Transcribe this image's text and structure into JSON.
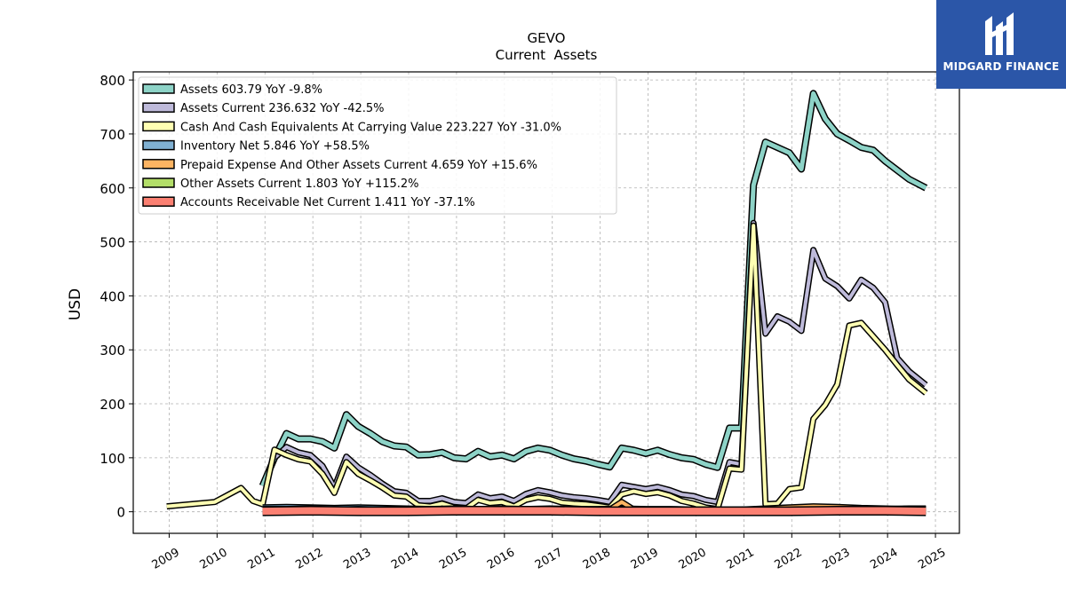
{
  "chart_data": {
    "type": "line",
    "title": "GEVO",
    "subtitle": "Current  Assets",
    "xlabel": "",
    "ylabel": "USD",
    "ylim": [
      -40,
      815
    ],
    "xlim": [
      2008.25,
      2025.5
    ],
    "yticks": [
      0,
      100,
      200,
      300,
      400,
      500,
      600,
      700,
      800
    ],
    "xticks": [
      2009,
      2010,
      2011,
      2012,
      2013,
      2014,
      2015,
      2016,
      2017,
      2018,
      2019,
      2020,
      2021,
      2022,
      2023,
      2024,
      2025
    ],
    "grid": true,
    "legend_position": "top-left",
    "series": [
      {
        "name": "Assets",
        "legend": "Assets  603.79 YoY -9.8%",
        "color": "#8dd3c7",
        "lw": 5,
        "points": [
          [
            2010.95,
            48
          ],
          [
            2011.2,
            100
          ],
          [
            2011.45,
            145
          ],
          [
            2011.7,
            135
          ],
          [
            2011.95,
            135
          ],
          [
            2012.2,
            130
          ],
          [
            2012.45,
            118
          ],
          [
            2012.7,
            180
          ],
          [
            2012.95,
            158
          ],
          [
            2013.2,
            145
          ],
          [
            2013.45,
            130
          ],
          [
            2013.7,
            122
          ],
          [
            2013.95,
            120
          ],
          [
            2014.2,
            105
          ],
          [
            2014.45,
            106
          ],
          [
            2014.7,
            110
          ],
          [
            2014.95,
            100
          ],
          [
            2015.2,
            98
          ],
          [
            2015.45,
            112
          ],
          [
            2015.7,
            102
          ],
          [
            2015.95,
            105
          ],
          [
            2016.2,
            98
          ],
          [
            2016.45,
            112
          ],
          [
            2016.7,
            118
          ],
          [
            2016.95,
            114
          ],
          [
            2017.2,
            105
          ],
          [
            2017.45,
            98
          ],
          [
            2017.7,
            94
          ],
          [
            2017.95,
            88
          ],
          [
            2018.2,
            83
          ],
          [
            2018.45,
            118
          ],
          [
            2018.7,
            114
          ],
          [
            2018.95,
            108
          ],
          [
            2019.2,
            114
          ],
          [
            2019.45,
            106
          ],
          [
            2019.7,
            100
          ],
          [
            2019.95,
            97
          ],
          [
            2020.2,
            88
          ],
          [
            2020.45,
            82
          ],
          [
            2020.7,
            155
          ],
          [
            2020.95,
            155
          ],
          [
            2021.2,
            605
          ],
          [
            2021.45,
            685
          ],
          [
            2021.7,
            675
          ],
          [
            2021.95,
            665
          ],
          [
            2022.2,
            635
          ],
          [
            2022.45,
            775
          ],
          [
            2022.7,
            728
          ],
          [
            2022.95,
            700
          ],
          [
            2023.2,
            688
          ],
          [
            2023.45,
            675
          ],
          [
            2023.7,
            670
          ],
          [
            2023.95,
            650
          ],
          [
            2024.2,
            633
          ],
          [
            2024.45,
            616
          ],
          [
            2024.8,
            600
          ]
        ]
      },
      {
        "name": "Assets Current",
        "legend": "Assets Current  236.632 YoY -42.5%",
        "color": "#bebada",
        "lw": 4,
        "points": [
          [
            2011.2,
            100
          ],
          [
            2011.45,
            120
          ],
          [
            2011.7,
            110
          ],
          [
            2011.95,
            105
          ],
          [
            2012.2,
            85
          ],
          [
            2012.45,
            45
          ],
          [
            2012.7,
            102
          ],
          [
            2012.95,
            82
          ],
          [
            2013.2,
            68
          ],
          [
            2013.45,
            52
          ],
          [
            2013.7,
            38
          ],
          [
            2013.95,
            35
          ],
          [
            2014.2,
            20
          ],
          [
            2014.45,
            20
          ],
          [
            2014.7,
            25
          ],
          [
            2014.95,
            18
          ],
          [
            2015.2,
            16
          ],
          [
            2015.45,
            32
          ],
          [
            2015.7,
            25
          ],
          [
            2015.95,
            28
          ],
          [
            2016.2,
            20
          ],
          [
            2016.45,
            33
          ],
          [
            2016.7,
            40
          ],
          [
            2016.95,
            36
          ],
          [
            2017.2,
            30
          ],
          [
            2017.45,
            27
          ],
          [
            2017.7,
            25
          ],
          [
            2017.95,
            22
          ],
          [
            2018.2,
            18
          ],
          [
            2018.45,
            50
          ],
          [
            2018.7,
            46
          ],
          [
            2018.95,
            42
          ],
          [
            2019.2,
            46
          ],
          [
            2019.45,
            40
          ],
          [
            2019.7,
            32
          ],
          [
            2019.95,
            29
          ],
          [
            2020.2,
            22
          ],
          [
            2020.45,
            18
          ],
          [
            2020.7,
            92
          ],
          [
            2020.95,
            88
          ],
          [
            2021.2,
            535
          ],
          [
            2021.45,
            330
          ],
          [
            2021.7,
            362
          ],
          [
            2021.95,
            352
          ],
          [
            2022.2,
            335
          ],
          [
            2022.45,
            485
          ],
          [
            2022.7,
            432
          ],
          [
            2022.95,
            418
          ],
          [
            2023.2,
            395
          ],
          [
            2023.45,
            430
          ],
          [
            2023.7,
            415
          ],
          [
            2023.95,
            388
          ],
          [
            2024.2,
            285
          ],
          [
            2024.45,
            260
          ],
          [
            2024.8,
            235
          ]
        ]
      },
      {
        "name": "Cash And Cash Equivalents At Carrying Value",
        "legend": "Cash And Cash Equivalents At Carrying Value  223.227 YoY -31.0%",
        "color": "#ffffb3",
        "lw": 4,
        "points": [
          [
            2008.95,
            10
          ],
          [
            2009.95,
            18
          ],
          [
            2010.5,
            44
          ],
          [
            2010.75,
            20
          ],
          [
            2010.95,
            14
          ],
          [
            2011.2,
            115
          ],
          [
            2011.45,
            105
          ],
          [
            2011.7,
            97
          ],
          [
            2011.95,
            93
          ],
          [
            2012.2,
            70
          ],
          [
            2012.45,
            35
          ],
          [
            2012.7,
            92
          ],
          [
            2012.95,
            70
          ],
          [
            2013.2,
            58
          ],
          [
            2013.45,
            45
          ],
          [
            2013.7,
            30
          ],
          [
            2013.95,
            28
          ],
          [
            2014.2,
            12
          ],
          [
            2014.45,
            10
          ],
          [
            2014.7,
            15
          ],
          [
            2014.95,
            8
          ],
          [
            2015.2,
            6
          ],
          [
            2015.45,
            22
          ],
          [
            2015.7,
            16
          ],
          [
            2015.95,
            18
          ],
          [
            2016.2,
            10
          ],
          [
            2016.45,
            22
          ],
          [
            2016.7,
            27
          ],
          [
            2016.95,
            24
          ],
          [
            2017.2,
            17
          ],
          [
            2017.45,
            15
          ],
          [
            2017.7,
            14
          ],
          [
            2017.95,
            11
          ],
          [
            2018.2,
            8
          ],
          [
            2018.45,
            32
          ],
          [
            2018.7,
            38
          ],
          [
            2018.95,
            33
          ],
          [
            2019.2,
            36
          ],
          [
            2019.45,
            30
          ],
          [
            2019.7,
            20
          ],
          [
            2019.95,
            15
          ],
          [
            2020.2,
            8
          ],
          [
            2020.45,
            5
          ],
          [
            2020.7,
            80
          ],
          [
            2020.95,
            78
          ],
          [
            2021.2,
            530
          ],
          [
            2021.45,
            14
          ],
          [
            2021.7,
            15
          ],
          [
            2021.95,
            42
          ],
          [
            2022.2,
            45
          ],
          [
            2022.45,
            172
          ],
          [
            2022.7,
            198
          ],
          [
            2022.95,
            236
          ],
          [
            2023.2,
            345
          ],
          [
            2023.45,
            350
          ],
          [
            2023.7,
            325
          ],
          [
            2023.95,
            300
          ],
          [
            2024.2,
            272
          ],
          [
            2024.45,
            245
          ],
          [
            2024.8,
            220
          ]
        ]
      },
      {
        "name": "Inventory Net",
        "legend": "Inventory Net  5.846 YoY +58.5%",
        "color": "#80b1d3",
        "lw": 4,
        "points": [
          [
            2010.95,
            8
          ],
          [
            2011.45,
            9
          ],
          [
            2011.95,
            8
          ],
          [
            2012.45,
            7
          ],
          [
            2012.95,
            8
          ],
          [
            2013.45,
            7
          ],
          [
            2013.95,
            6
          ],
          [
            2014.45,
            5
          ],
          [
            2014.95,
            6
          ],
          [
            2015.45,
            5
          ],
          [
            2015.95,
            6
          ],
          [
            2016.45,
            5
          ],
          [
            2016.95,
            6
          ],
          [
            2017.45,
            5
          ],
          [
            2017.95,
            5
          ],
          [
            2018.45,
            6
          ],
          [
            2018.95,
            5
          ],
          [
            2019.45,
            5
          ],
          [
            2019.95,
            4
          ],
          [
            2020.45,
            4
          ],
          [
            2020.95,
            4
          ],
          [
            2021.45,
            4
          ],
          [
            2021.95,
            5
          ],
          [
            2022.45,
            6
          ],
          [
            2022.95,
            5
          ],
          [
            2023.45,
            5
          ],
          [
            2023.95,
            5
          ],
          [
            2024.45,
            6
          ],
          [
            2024.8,
            6
          ]
        ]
      },
      {
        "name": "Prepaid Expense And Other Assets Current",
        "legend": "Prepaid Expense And Other Assets Current  4.659 YoY +15.6%",
        "color": "#fdb462",
        "lw": 4,
        "points": [
          [
            2010.95,
            5
          ],
          [
            2011.45,
            5
          ],
          [
            2011.95,
            6
          ],
          [
            2012.45,
            4
          ],
          [
            2012.95,
            5
          ],
          [
            2013.45,
            4
          ],
          [
            2013.95,
            4
          ],
          [
            2014.45,
            3
          ],
          [
            2014.95,
            3
          ],
          [
            2015.45,
            4
          ],
          [
            2015.95,
            3
          ],
          [
            2016.45,
            3
          ],
          [
            2016.95,
            3
          ],
          [
            2017.45,
            3
          ],
          [
            2017.95,
            3
          ],
          [
            2018.2,
            4
          ],
          [
            2018.45,
            18
          ],
          [
            2018.7,
            4
          ],
          [
            2018.95,
            3
          ],
          [
            2019.45,
            3
          ],
          [
            2019.95,
            3
          ],
          [
            2020.45,
            3
          ],
          [
            2020.95,
            4
          ],
          [
            2021.45,
            6
          ],
          [
            2021.95,
            8
          ],
          [
            2022.45,
            10
          ],
          [
            2022.95,
            9
          ],
          [
            2023.45,
            7
          ],
          [
            2023.95,
            6
          ],
          [
            2024.45,
            5
          ],
          [
            2024.8,
            5
          ]
        ]
      },
      {
        "name": "Other Assets Current",
        "legend": "Other Assets Current  1.803 YoY +115.2%",
        "color": "#b3de69",
        "lw": 4,
        "points": [
          [
            2010.95,
            2
          ],
          [
            2011.95,
            2
          ],
          [
            2012.95,
            2
          ],
          [
            2013.95,
            2
          ],
          [
            2014.95,
            1
          ],
          [
            2015.95,
            1
          ],
          [
            2016.95,
            1
          ],
          [
            2017.95,
            1
          ],
          [
            2018.95,
            1
          ],
          [
            2019.95,
            1
          ],
          [
            2020.95,
            1
          ],
          [
            2021.95,
            2
          ],
          [
            2022.95,
            2
          ],
          [
            2023.95,
            1
          ],
          [
            2024.8,
            2
          ]
        ]
      },
      {
        "name": "Accounts Receivable Net Current",
        "legend": "Accounts Receivable Net Current  1.411 YoY -37.1%",
        "color": "#fb8072",
        "lw": 8,
        "points": [
          [
            2010.95,
            1
          ],
          [
            2011.95,
            2
          ],
          [
            2012.95,
            1
          ],
          [
            2013.95,
            1
          ],
          [
            2014.95,
            2
          ],
          [
            2015.95,
            2
          ],
          [
            2016.95,
            2
          ],
          [
            2017.95,
            1
          ],
          [
            2018.95,
            1
          ],
          [
            2019.95,
            1
          ],
          [
            2020.95,
            1
          ],
          [
            2021.95,
            1
          ],
          [
            2022.95,
            2
          ],
          [
            2023.95,
            2
          ],
          [
            2024.8,
            1
          ]
        ]
      }
    ]
  },
  "logo": {
    "text": "MIDGARD FINANCE"
  }
}
